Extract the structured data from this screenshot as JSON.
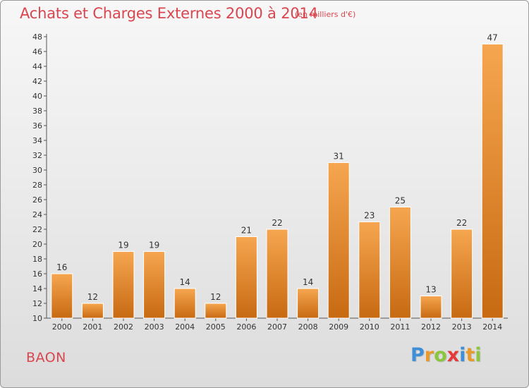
{
  "title": "Achats et Charges Externes 2000 à 2014",
  "subtitle": "(en milliers d'€)",
  "place": "BAON",
  "brand": {
    "letters": [
      "P",
      "r",
      "o",
      "x",
      "i",
      "t",
      "i"
    ],
    "colors": [
      "#3f8fd8",
      "#e89a2a",
      "#8cc63f",
      "#e63a3a",
      "#3f8fd8",
      "#e89a2a",
      "#8cc63f"
    ]
  },
  "colors": {
    "bar_light": "#f6a650",
    "bar_dark": "#c76a12",
    "title": "#d9464f"
  },
  "chart_data": {
    "type": "bar",
    "title": "Achats et Charges Externes 2000 à 2014",
    "subtitle": "(en milliers d'€)",
    "categories": [
      "2000",
      "2001",
      "2002",
      "2003",
      "2004",
      "2005",
      "2006",
      "2007",
      "2008",
      "2009",
      "2010",
      "2011",
      "2012",
      "2013",
      "2014"
    ],
    "values": [
      16,
      12,
      19,
      19,
      14,
      12,
      21,
      22,
      14,
      31,
      23,
      25,
      13,
      22,
      47
    ],
    "ylim": [
      10,
      48
    ],
    "yticks": [
      "10",
      "12",
      "14",
      "16",
      "18",
      "20",
      "22",
      "24",
      "26",
      "28",
      "30",
      "32",
      "34",
      "36",
      "38",
      "40",
      "42",
      "44",
      "46",
      "48"
    ],
    "grid": false,
    "xlabel": "",
    "ylabel": ""
  }
}
